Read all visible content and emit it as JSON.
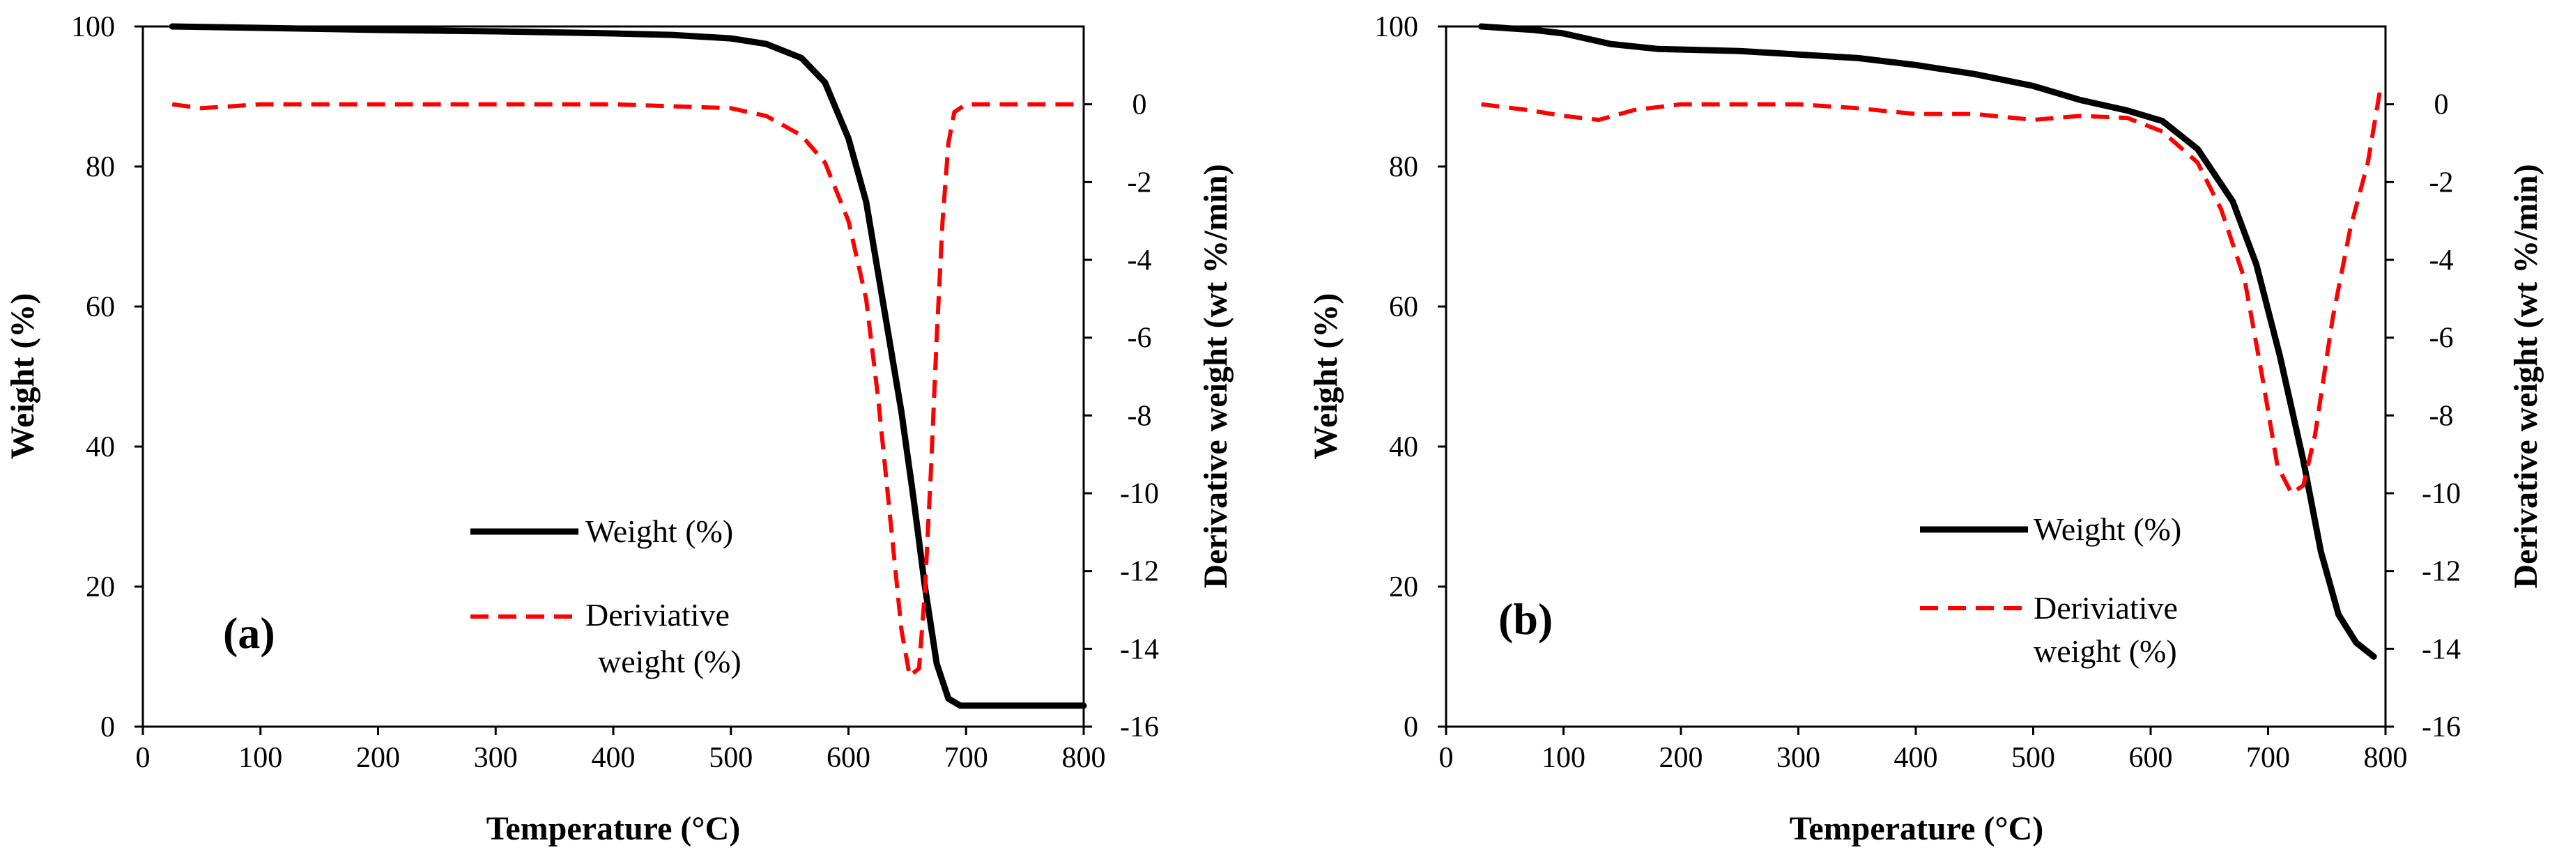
{
  "chart_data": [
    {
      "type": "line",
      "panel_label": "(a)",
      "xlabel": "Temperature (°C)",
      "ylabel": "Weight (%)",
      "y2label": "Derivative weight (wt %/min)",
      "xlim": [
        0,
        800
      ],
      "ylim": [
        0,
        100
      ],
      "y2lim": [
        -16,
        2
      ],
      "x_ticks": [
        "0",
        "100",
        "200",
        "300",
        "400",
        "500",
        "600",
        "700",
        "800"
      ],
      "y_ticks": [
        "0",
        "20",
        "40",
        "60",
        "80",
        "100"
      ],
      "y2_ticks": [
        "-16",
        "-14",
        "-12",
        "-10",
        "-8",
        "-6",
        "-4",
        "-2",
        "0"
      ],
      "grid": false,
      "legend_position": "bottom-center",
      "legend": [
        {
          "label": "Weight (%)",
          "style": "solid",
          "color": "#000000"
        },
        {
          "label_line1": "Deriviative",
          "label_line2": "weight (%)",
          "style": "dashed",
          "color": "#ff0000"
        }
      ],
      "series": [
        {
          "name": "Weight (%)",
          "axis": "left",
          "color": "#000000",
          "style": "solid",
          "x": [
            25,
            100,
            200,
            300,
            400,
            450,
            500,
            530,
            560,
            580,
            600,
            615,
            630,
            645,
            655,
            665,
            675,
            685,
            695,
            710,
            800
          ],
          "y": [
            100,
            99.8,
            99.5,
            99.3,
            99.0,
            98.8,
            98.3,
            97.5,
            95.5,
            92,
            84,
            75,
            60,
            45,
            33,
            20,
            9,
            4,
            3,
            3,
            3
          ]
        },
        {
          "name": "Deriviative weight (%)",
          "axis": "right",
          "color": "#ff0000",
          "style": "dashed",
          "x": [
            25,
            50,
            100,
            200,
            300,
            400,
            450,
            500,
            530,
            560,
            580,
            600,
            615,
            625,
            635,
            645,
            652,
            660,
            665,
            670,
            675,
            680,
            685,
            690,
            700,
            800
          ],
          "y": [
            0,
            -0.1,
            0,
            0,
            0,
            0,
            -0.05,
            -0.1,
            -0.3,
            -0.8,
            -1.5,
            -3,
            -5,
            -7.5,
            -10.5,
            -13.5,
            -14.7,
            -14.5,
            -12.5,
            -9.5,
            -6,
            -3,
            -1,
            -0.2,
            0,
            0
          ]
        }
      ]
    },
    {
      "type": "line",
      "panel_label": "(b)",
      "xlabel": "Temperature (°C)",
      "ylabel": "Weight (%)",
      "y2label": "Derivative weight (wt %/min)",
      "xlim": [
        0,
        800
      ],
      "ylim": [
        0,
        100
      ],
      "y2lim": [
        -16,
        2
      ],
      "x_ticks": [
        "0",
        "100",
        "200",
        "300",
        "400",
        "500",
        "600",
        "700",
        "800"
      ],
      "y_ticks": [
        "0",
        "20",
        "40",
        "60",
        "80",
        "100"
      ],
      "y2_ticks": [
        "-16",
        "-14",
        "-12",
        "-10",
        "-8",
        "-6",
        "-4",
        "-2",
        "0"
      ],
      "grid": false,
      "legend_position": "bottom-center",
      "legend": [
        {
          "label": "Weight (%)",
          "style": "solid",
          "color": "#000000"
        },
        {
          "label_line1": "Deriviative",
          "label_line2": "weight (%)",
          "style": "dashed",
          "color": "#ff0000"
        }
      ],
      "series": [
        {
          "name": "Weight (%)",
          "axis": "left",
          "color": "#000000",
          "style": "solid",
          "x": [
            30,
            75,
            100,
            140,
            180,
            250,
            300,
            350,
            400,
            450,
            500,
            540,
            580,
            610,
            640,
            670,
            690,
            710,
            730,
            745,
            760,
            775,
            790
          ],
          "y": [
            100,
            99.5,
            99,
            97.5,
            96.8,
            96.5,
            96,
            95.5,
            94.5,
            93.2,
            91.5,
            89.5,
            88,
            86.5,
            82.5,
            75,
            66,
            53,
            38,
            25,
            16,
            12,
            10
          ]
        },
        {
          "name": "Deriviative weight (%)",
          "axis": "right",
          "color": "#ff0000",
          "style": "dashed",
          "x": [
            30,
            70,
            100,
            130,
            160,
            200,
            250,
            300,
            350,
            400,
            450,
            500,
            540,
            580,
            610,
            640,
            660,
            680,
            695,
            708,
            720,
            730,
            740,
            755,
            770,
            785,
            795
          ],
          "y": [
            0,
            -0.15,
            -0.3,
            -0.4,
            -0.15,
            0,
            0,
            0,
            -0.1,
            -0.25,
            -0.25,
            -0.4,
            -0.3,
            -0.35,
            -0.7,
            -1.5,
            -2.7,
            -4.5,
            -7,
            -9.3,
            -10,
            -9.8,
            -8.5,
            -5.5,
            -3.2,
            -1.5,
            0.3
          ]
        }
      ]
    }
  ]
}
